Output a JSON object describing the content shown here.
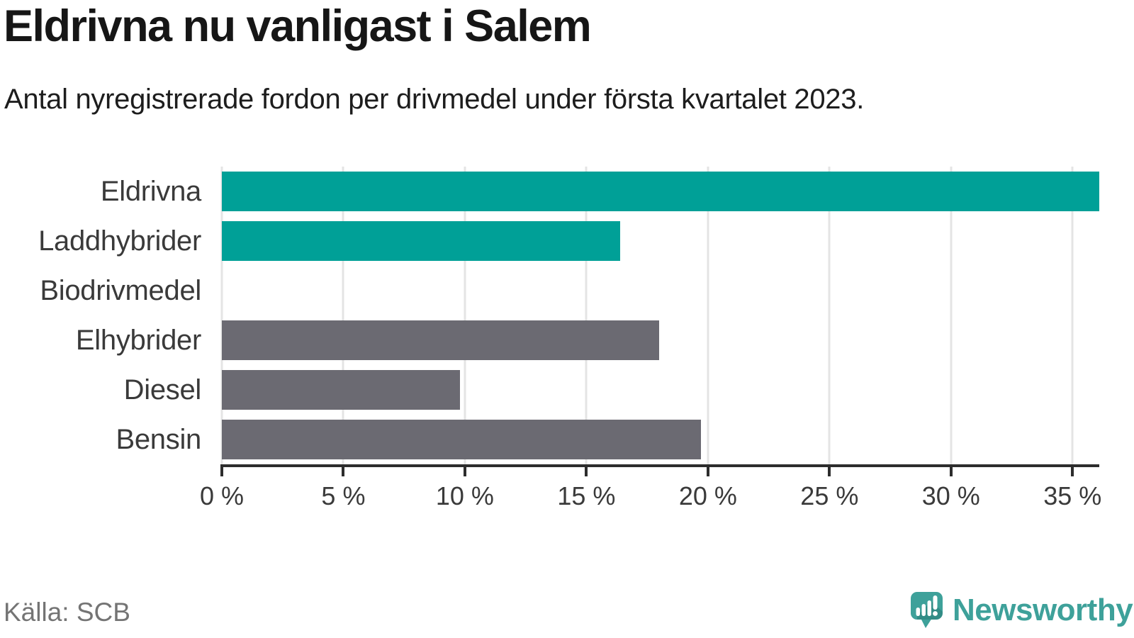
{
  "chart_data": {
    "type": "bar",
    "orientation": "horizontal",
    "title": "Eldrivna nu vanligast i Salem",
    "subtitle": "Antal nyregistrerade fordon per drivmedel under första kvartalet 2023.",
    "categories": [
      "Eldrivna",
      "Laddhybrider",
      "Biodrivmedel",
      "Elhybrider",
      "Diesel",
      "Bensin"
    ],
    "values": [
      36.1,
      16.4,
      0,
      18.0,
      9.8,
      19.7
    ],
    "unit": "%",
    "highlighted": [
      true,
      true,
      false,
      false,
      false,
      false
    ],
    "xlim": [
      0,
      36.1
    ],
    "xticks": [
      0,
      5,
      10,
      15,
      20,
      25,
      30,
      35
    ],
    "xtick_labels": [
      "0 %",
      "5 %",
      "10 %",
      "15 %",
      "20 %",
      "25 %",
      "30 %",
      "35 %"
    ],
    "grid": true,
    "legend": false,
    "source": "Källa: SCB"
  },
  "footer": {
    "brand": "Newsworthy"
  },
  "colors": {
    "highlight_bar": "#00a097",
    "default_bar": "#6b6a72",
    "gridline": "#e4e4e4",
    "axis": "#2d2d2d",
    "title_text": "#161616",
    "subtitle_text": "#1d1d1d",
    "label_text": "#3a3a3a",
    "muted_text": "#747474",
    "brand_teal": "#3ea19a"
  }
}
